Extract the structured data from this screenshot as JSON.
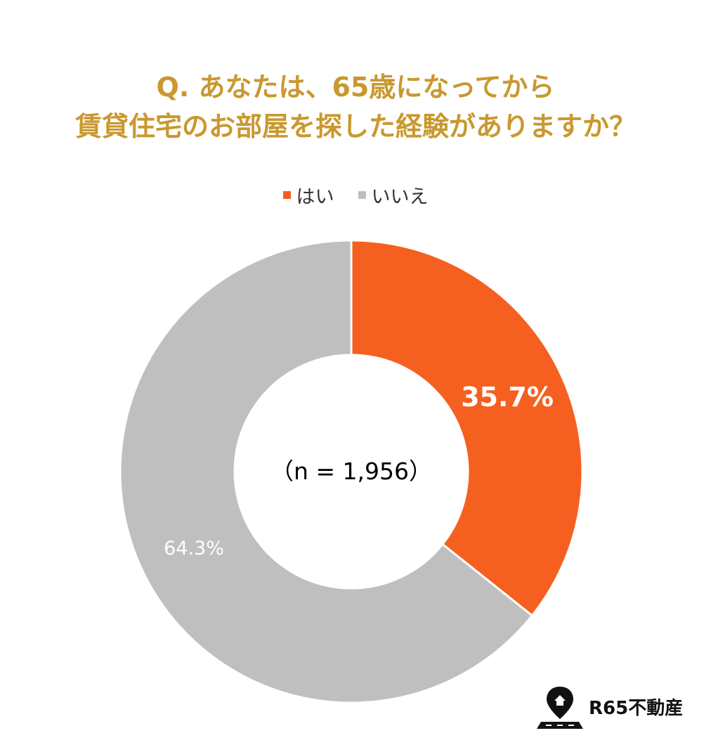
{
  "title": {
    "line1": "Q. あなたは、65歳になってから",
    "line2": "賃貸住宅のお部屋を探した経験がありますか？"
  },
  "logo_text": "R65不動産",
  "chart_data": {
    "type": "pie",
    "donut": true,
    "categories": [
      "はい",
      "いいえ"
    ],
    "values": [
      35.7,
      64.3
    ],
    "data_labels": [
      "35.7%",
      "64.3%"
    ],
    "colors": [
      "#f56020",
      "#bfbfbf"
    ],
    "center_label": "（n = 1,956）",
    "legend_position": "top"
  }
}
